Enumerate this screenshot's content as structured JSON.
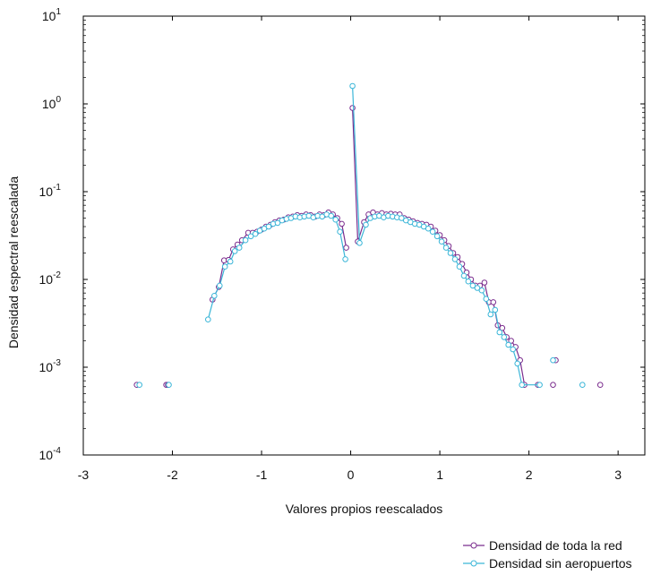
{
  "chart_data": {
    "type": "line",
    "title": "",
    "xlabel": "Valores propios reescalados",
    "ylabel": "Densidad espectral reescalada",
    "xlim": [
      -3,
      3.3
    ],
    "ylim_log10": [
      -4,
      1
    ],
    "y_scale": "log",
    "grid": false,
    "legend_position": "bottom-right",
    "x_ticks": [
      {
        "value": -3,
        "label": "-3"
      },
      {
        "value": -2,
        "label": "-2"
      },
      {
        "value": -1,
        "label": "-1"
      },
      {
        "value": 0,
        "label": "0"
      },
      {
        "value": 1,
        "label": "1"
      },
      {
        "value": 2,
        "label": "2"
      },
      {
        "value": 3,
        "label": "3"
      }
    ],
    "y_ticks": [
      {
        "exp": 1,
        "base": "10",
        "sup": "1"
      },
      {
        "exp": 0,
        "base": "10",
        "sup": "0"
      },
      {
        "exp": -1,
        "base": "10",
        "sup": "-1"
      },
      {
        "exp": -2,
        "base": "10",
        "sup": "-2"
      },
      {
        "exp": -3,
        "base": "10",
        "sup": "-3"
      },
      {
        "exp": -4,
        "base": "10",
        "sup": "-4"
      }
    ],
    "series": [
      {
        "name": "Densidad de toda la red",
        "color": "#7b2d8e",
        "points": [
          [
            -2.4,
            0.00063
          ],
          [
            -2.07,
            0.00063
          ],
          [
            -2.05,
            0.00063
          ],
          [
            -1.55,
            0.0059
          ],
          [
            -1.48,
            0.0082
          ],
          [
            -1.42,
            0.0165
          ],
          [
            -1.37,
            0.0167
          ],
          [
            -1.32,
            0.022
          ],
          [
            -1.27,
            0.025
          ],
          [
            -1.22,
            0.028
          ],
          [
            -1.15,
            0.034
          ],
          [
            -1.1,
            0.034
          ],
          [
            -1.05,
            0.035
          ],
          [
            -1.0,
            0.037
          ],
          [
            -0.95,
            0.04
          ],
          [
            -0.9,
            0.042
          ],
          [
            -0.85,
            0.045
          ],
          [
            -0.8,
            0.047
          ],
          [
            -0.75,
            0.048
          ],
          [
            -0.7,
            0.051
          ],
          [
            -0.65,
            0.052
          ],
          [
            -0.6,
            0.054
          ],
          [
            -0.55,
            0.053
          ],
          [
            -0.5,
            0.055
          ],
          [
            -0.45,
            0.054
          ],
          [
            -0.4,
            0.052
          ],
          [
            -0.35,
            0.055
          ],
          [
            -0.3,
            0.054
          ],
          [
            -0.25,
            0.058
          ],
          [
            -0.2,
            0.055
          ],
          [
            -0.15,
            0.05
          ],
          [
            -0.1,
            0.043
          ],
          [
            -0.05,
            0.023
          ],
          [
            0.02,
            0.9
          ],
          [
            0.08,
            0.027
          ],
          [
            0.15,
            0.045
          ],
          [
            0.2,
            0.055
          ],
          [
            0.25,
            0.058
          ],
          [
            0.3,
            0.055
          ],
          [
            0.35,
            0.057
          ],
          [
            0.4,
            0.055
          ],
          [
            0.45,
            0.056
          ],
          [
            0.5,
            0.055
          ],
          [
            0.55,
            0.055
          ],
          [
            0.6,
            0.05
          ],
          [
            0.65,
            0.048
          ],
          [
            0.7,
            0.046
          ],
          [
            0.75,
            0.044
          ],
          [
            0.8,
            0.043
          ],
          [
            0.85,
            0.042
          ],
          [
            0.9,
            0.04
          ],
          [
            0.95,
            0.036
          ],
          [
            1.0,
            0.032
          ],
          [
            1.05,
            0.028
          ],
          [
            1.1,
            0.024
          ],
          [
            1.15,
            0.02
          ],
          [
            1.2,
            0.018
          ],
          [
            1.25,
            0.015
          ],
          [
            1.3,
            0.012
          ],
          [
            1.35,
            0.01
          ],
          [
            1.4,
            0.0085
          ],
          [
            1.45,
            0.0085
          ],
          [
            1.5,
            0.0092
          ],
          [
            1.55,
            0.0055
          ],
          [
            1.6,
            0.0055
          ],
          [
            1.65,
            0.003
          ],
          [
            1.7,
            0.0028
          ],
          [
            1.75,
            0.0022
          ],
          [
            1.8,
            0.002
          ],
          [
            1.85,
            0.0017
          ],
          [
            1.9,
            0.0012
          ],
          [
            1.95,
            0.00063
          ],
          [
            2.1,
            0.00063
          ],
          [
            2.27,
            0.00063
          ],
          [
            2.3,
            0.0012
          ],
          [
            2.8,
            0.00063
          ]
        ],
        "segments": [
          [
            3,
            32
          ],
          [
            33,
            71
          ]
        ]
      },
      {
        "name": "Densidad sin aeropuertos",
        "color": "#3bb6d8",
        "points": [
          [
            -2.37,
            0.00063
          ],
          [
            -2.04,
            0.00063
          ],
          [
            -1.6,
            0.0035
          ],
          [
            -1.53,
            0.0065
          ],
          [
            -1.47,
            0.0085
          ],
          [
            -1.41,
            0.014
          ],
          [
            -1.35,
            0.016
          ],
          [
            -1.3,
            0.021
          ],
          [
            -1.25,
            0.023
          ],
          [
            -1.18,
            0.028
          ],
          [
            -1.12,
            0.031
          ],
          [
            -1.07,
            0.033
          ],
          [
            -1.02,
            0.036
          ],
          [
            -0.97,
            0.038
          ],
          [
            -0.92,
            0.04
          ],
          [
            -0.87,
            0.043
          ],
          [
            -0.82,
            0.044
          ],
          [
            -0.77,
            0.047
          ],
          [
            -0.72,
            0.049
          ],
          [
            -0.67,
            0.05
          ],
          [
            -0.62,
            0.052
          ],
          [
            -0.57,
            0.051
          ],
          [
            -0.52,
            0.052
          ],
          [
            -0.47,
            0.053
          ],
          [
            -0.42,
            0.051
          ],
          [
            -0.37,
            0.053
          ],
          [
            -0.32,
            0.052
          ],
          [
            -0.27,
            0.055
          ],
          [
            -0.22,
            0.053
          ],
          [
            -0.17,
            0.048
          ],
          [
            -0.12,
            0.035
          ],
          [
            -0.06,
            0.017
          ],
          [
            0.02,
            1.6
          ],
          [
            0.1,
            0.026
          ],
          [
            0.17,
            0.042
          ],
          [
            0.22,
            0.05
          ],
          [
            0.27,
            0.052
          ],
          [
            0.32,
            0.053
          ],
          [
            0.37,
            0.051
          ],
          [
            0.42,
            0.053
          ],
          [
            0.47,
            0.052
          ],
          [
            0.52,
            0.051
          ],
          [
            0.57,
            0.05
          ],
          [
            0.62,
            0.047
          ],
          [
            0.67,
            0.045
          ],
          [
            0.72,
            0.043
          ],
          [
            0.77,
            0.042
          ],
          [
            0.82,
            0.04
          ],
          [
            0.87,
            0.038
          ],
          [
            0.92,
            0.035
          ],
          [
            0.97,
            0.031
          ],
          [
            1.02,
            0.027
          ],
          [
            1.07,
            0.023
          ],
          [
            1.12,
            0.02
          ],
          [
            1.17,
            0.017
          ],
          [
            1.22,
            0.014
          ],
          [
            1.27,
            0.011
          ],
          [
            1.32,
            0.0095
          ],
          [
            1.37,
            0.0085
          ],
          [
            1.42,
            0.008
          ],
          [
            1.47,
            0.0075
          ],
          [
            1.52,
            0.006
          ],
          [
            1.57,
            0.004
          ],
          [
            1.62,
            0.0045
          ],
          [
            1.67,
            0.0025
          ],
          [
            1.72,
            0.0022
          ],
          [
            1.77,
            0.0018
          ],
          [
            1.82,
            0.0016
          ],
          [
            1.87,
            0.0011
          ],
          [
            1.92,
            0.00063
          ],
          [
            2.12,
            0.00063
          ],
          [
            2.27,
            0.0012
          ],
          [
            2.6,
            0.00063
          ]
        ],
        "segments": [
          [
            2,
            31
          ],
          [
            32,
            70
          ]
        ]
      }
    ]
  }
}
